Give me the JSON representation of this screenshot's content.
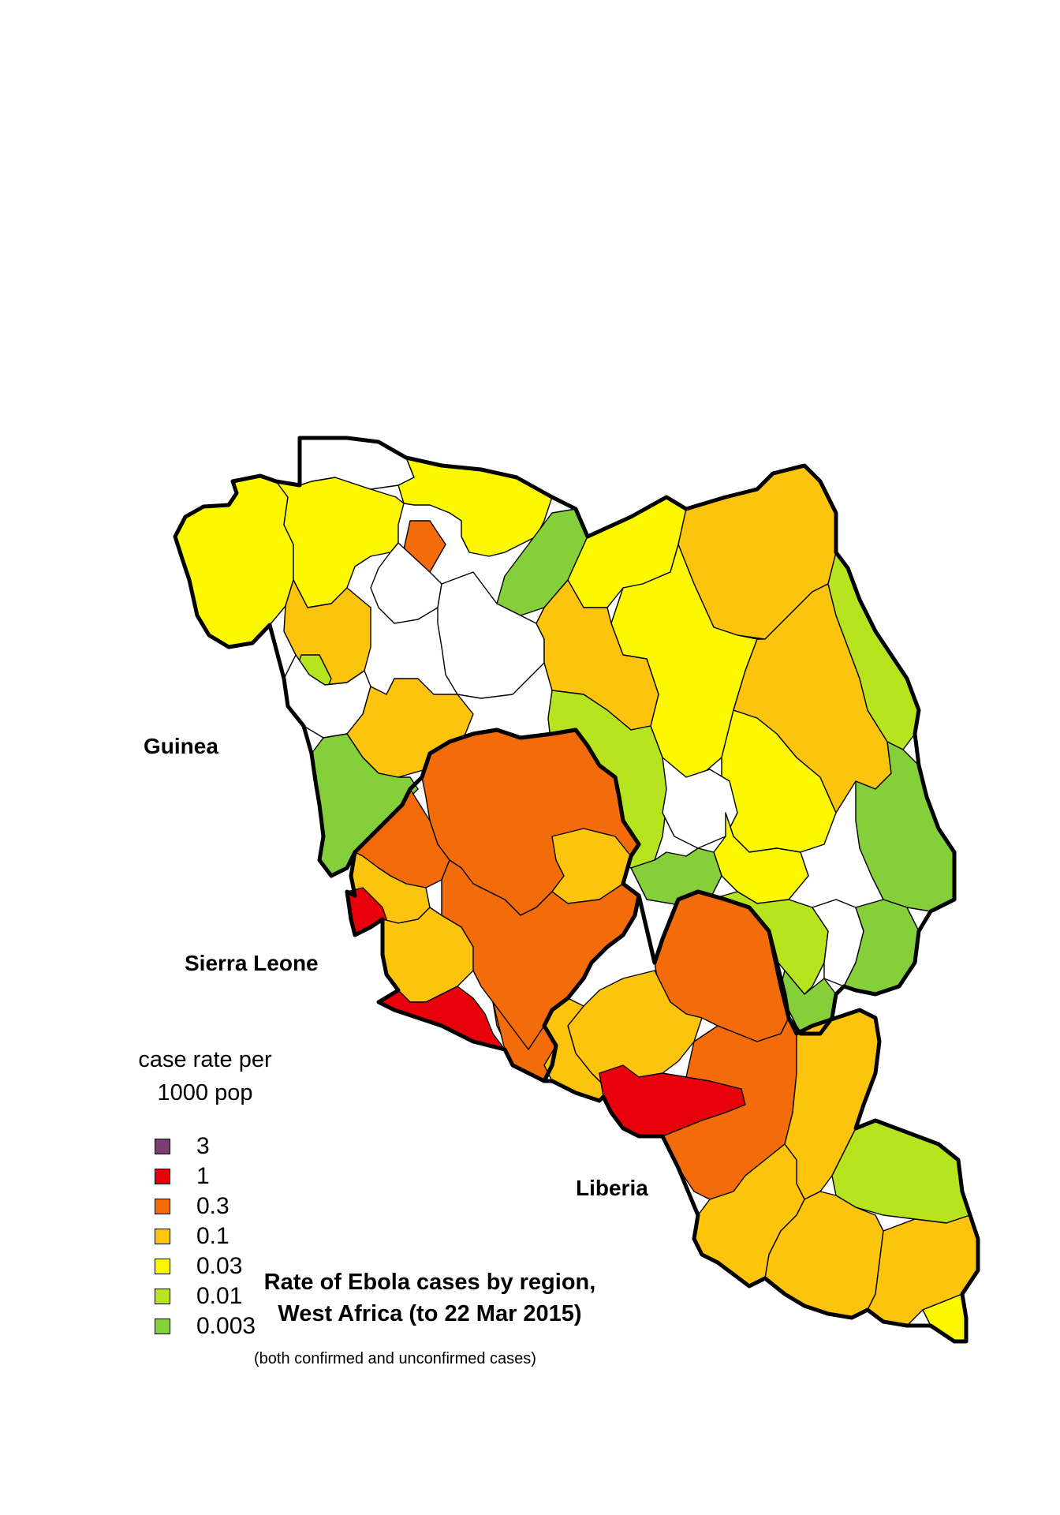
{
  "title": {
    "line1": "Rate of Ebola cases by region,",
    "line2": "West Africa (to 22 Mar 2015)",
    "subtitle": "(both confirmed and unconfirmed cases)"
  },
  "country_labels": {
    "guinea": "Guinea",
    "sierra_leone": "Sierra Leone",
    "liberia": "Liberia"
  },
  "legend": {
    "title_line1": "case rate per",
    "title_line2": "1000 pop",
    "items": [
      {
        "label": "3",
        "color": "#7b3d72"
      },
      {
        "label": "1",
        "color": "#e8000b"
      },
      {
        "label": "0.3",
        "color": "#f46c09"
      },
      {
        "label": "0.1",
        "color": "#fcc40c"
      },
      {
        "label": "0.03",
        "color": "#fbf800"
      },
      {
        "label": "0.01",
        "color": "#b6e41e"
      },
      {
        "label": "0.003",
        "color": "#85cf3a"
      }
    ]
  },
  "colors": {
    "no_cases": "#ffffff",
    "border": "#000000"
  }
}
